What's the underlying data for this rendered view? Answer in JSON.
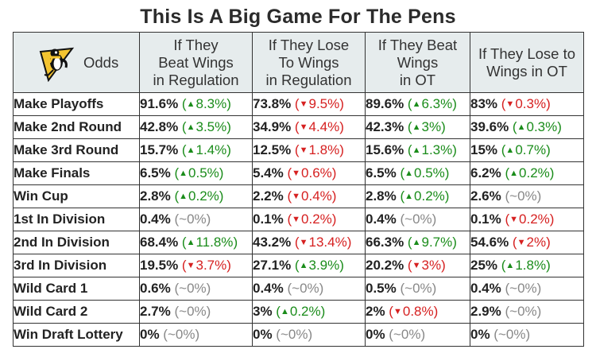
{
  "title": "This Is A Big Game For The Pens",
  "colors": {
    "up": "#1a8c1a",
    "down": "#d62020",
    "flat": "#888888",
    "header_bg": "#e6eced"
  },
  "header": {
    "odds_label": "Odds",
    "logo_icon": "pittsburgh-penguins-logo",
    "columns": [
      {
        "lines": [
          "If They",
          "Beat Wings",
          "in Regulation"
        ]
      },
      {
        "lines": [
          "If They Lose",
          "To Wings",
          "in Regulation"
        ]
      },
      {
        "lines": [
          "If They Beat",
          "Wings",
          "in OT"
        ]
      },
      {
        "lines": [
          "If They Lose to",
          "Wings in OT"
        ]
      }
    ]
  },
  "rows": [
    {
      "label": "Make Playoffs",
      "cells": [
        {
          "value": "91.6%",
          "open": " (",
          "dir": "up",
          "change": "8.3%",
          "close": ")"
        },
        {
          "value": "73.8%",
          "open": " (",
          "dir": "down",
          "change": "9.5%",
          "close": ")"
        },
        {
          "value": "89.6%",
          "open": " (",
          "dir": "up",
          "change": "6.3%",
          "close": ")"
        },
        {
          "value": "83%",
          "open": " (",
          "dir": "down",
          "change": "0.3%",
          "close": ")"
        }
      ]
    },
    {
      "label": "Make 2nd Round",
      "cells": [
        {
          "value": "42.8%",
          "open": " (",
          "dir": "up",
          "change": "3.5%",
          "close": ")"
        },
        {
          "value": "34.9%",
          "open": " (",
          "dir": "down",
          "change": "4.4%",
          "close": ")"
        },
        {
          "value": "42.3%",
          "open": " (",
          "dir": "up",
          "change": "3%",
          "close": ")"
        },
        {
          "value": "39.6%",
          "open": " (",
          "dir": "up",
          "change": "0.3%",
          "close": ")"
        }
      ]
    },
    {
      "label": "Make 3rd Round",
      "cells": [
        {
          "value": "15.7%",
          "open": " (",
          "dir": "up",
          "change": "1.4%",
          "close": ")"
        },
        {
          "value": "12.5%",
          "open": " (",
          "dir": "down",
          "change": "1.8%",
          "close": ")"
        },
        {
          "value": "15.6%",
          "open": " (",
          "dir": "up",
          "change": "1.3%",
          "close": ")"
        },
        {
          "value": "15%",
          "open": " (",
          "dir": "up",
          "change": "0.7%",
          "close": ")"
        }
      ]
    },
    {
      "label": "Make Finals",
      "cells": [
        {
          "value": "6.5%",
          "open": " (",
          "dir": "up",
          "change": "0.5%",
          "close": ")"
        },
        {
          "value": "5.4%",
          "open": " (",
          "dir": "down",
          "change": "0.6%",
          "close": ")"
        },
        {
          "value": "6.5%",
          "open": " (",
          "dir": "up",
          "change": "0.5%",
          "close": ")"
        },
        {
          "value": "6.2%",
          "open": " (",
          "dir": "up",
          "change": "0.2%",
          "close": ")"
        }
      ]
    },
    {
      "label": "Win Cup",
      "cells": [
        {
          "value": "2.8%",
          "open": " (",
          "dir": "up",
          "change": "0.2%",
          "close": ")"
        },
        {
          "value": "2.2%",
          "open": " (",
          "dir": "down",
          "change": "0.4%",
          "close": ")"
        },
        {
          "value": "2.8%",
          "open": " (",
          "dir": "up",
          "change": "0.2%",
          "close": ")"
        },
        {
          "value": "2.6%",
          "open": " (",
          "dir": "flat",
          "change": "~0%",
          "close": ")"
        }
      ]
    },
    {
      "label": "1st In Division",
      "cells": [
        {
          "value": "0.4%",
          "open": " (",
          "dir": "flat",
          "change": "~0%",
          "close": ")"
        },
        {
          "value": "0.1%",
          "open": " (",
          "dir": "down",
          "change": "0.2%",
          "close": ")"
        },
        {
          "value": "0.4%",
          "open": " (",
          "dir": "flat",
          "change": "~0%",
          "close": ")"
        },
        {
          "value": "0.1%",
          "open": " (",
          "dir": "down",
          "change": "0.2%",
          "close": ")"
        }
      ]
    },
    {
      "label": "2nd In Division",
      "cells": [
        {
          "value": "68.4%",
          "open": " (",
          "dir": "up",
          "change": "11.8%",
          "close": ")"
        },
        {
          "value": "43.2%",
          "open": " (",
          "dir": "down",
          "change": "13.4%",
          "close": ")"
        },
        {
          "value": "66.3%",
          "open": " (",
          "dir": "up",
          "change": "9.7%",
          "close": ")"
        },
        {
          "value": "54.6%",
          "open": " (",
          "dir": "down",
          "change": "2%",
          "close": ")"
        }
      ]
    },
    {
      "label": "3rd In Division",
      "cells": [
        {
          "value": "19.5%",
          "open": " (",
          "dir": "down",
          "change": "3.7%",
          "close": ")"
        },
        {
          "value": "27.1%",
          "open": " (",
          "dir": "up",
          "change": "3.9%",
          "close": ")"
        },
        {
          "value": "20.2%",
          "open": " (",
          "dir": "down",
          "change": "3%",
          "close": ")"
        },
        {
          "value": "25%",
          "open": " (",
          "dir": "up",
          "change": "1.8%",
          "close": ")"
        }
      ]
    },
    {
      "label": "Wild Card 1",
      "cells": [
        {
          "value": "0.6%",
          "open": " (",
          "dir": "flat",
          "change": "~0%",
          "close": ")"
        },
        {
          "value": "0.4%",
          "open": " (",
          "dir": "flat",
          "change": "~0%",
          "close": ")"
        },
        {
          "value": "0.5%",
          "open": " (",
          "dir": "flat",
          "change": "~0%",
          "close": ")"
        },
        {
          "value": "0.4%",
          "open": " (",
          "dir": "flat",
          "change": "~0%",
          "close": ")"
        }
      ]
    },
    {
      "label": "Wild Card 2",
      "cells": [
        {
          "value": "2.7%",
          "open": " (",
          "dir": "flat",
          "change": "~0%",
          "close": ")"
        },
        {
          "value": "3%",
          "open": " (",
          "dir": "up",
          "change": "0.2%",
          "close": ")"
        },
        {
          "value": "2%",
          "open": " (",
          "dir": "down",
          "change": "0.8%",
          "close": ")"
        },
        {
          "value": "2.9%",
          "open": " (",
          "dir": "flat",
          "change": "~0%",
          "close": ")"
        }
      ]
    },
    {
      "label": "Win Draft Lottery",
      "cells": [
        {
          "value": "0%",
          "open": " (",
          "dir": "flat",
          "change": "~0%",
          "close": ")"
        },
        {
          "value": "0%",
          "open": " (",
          "dir": "flat",
          "change": "~0%",
          "close": ")"
        },
        {
          "value": "0%",
          "open": " (",
          "dir": "flat",
          "change": "~0%",
          "close": ")"
        },
        {
          "value": "0%",
          "open": " (",
          "dir": "flat",
          "change": "~0%",
          "close": ")"
        }
      ]
    }
  ]
}
